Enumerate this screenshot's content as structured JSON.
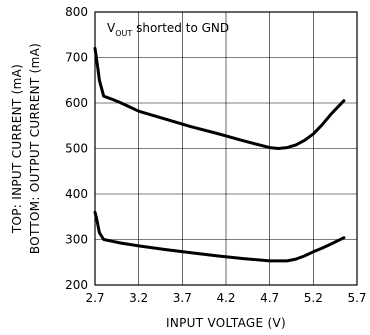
{
  "chart_data": {
    "type": "line",
    "annotation": {
      "main": "V",
      "subscript": "OUT",
      "rest": " shorted to GND"
    },
    "xlabel": "INPUT VOLTAGE (V)",
    "ylabel_line1": "TOP: INPUT CURRENT (mA)",
    "ylabel_line2": "BOTTOM: OUTPUT CURRENT (mA)",
    "xlim": [
      2.7,
      5.7
    ],
    "ylim": [
      200,
      800
    ],
    "xticks": [
      2.7,
      3.2,
      3.7,
      4.2,
      4.7,
      5.2,
      5.7
    ],
    "xtick_labels": [
      "2.7",
      "3.2",
      "3.7",
      "4.2",
      "4.7",
      "5.2",
      "5.7"
    ],
    "yticks": [
      200,
      300,
      400,
      500,
      600,
      700,
      800
    ],
    "ytick_labels": [
      "200",
      "300",
      "400",
      "500",
      "600",
      "700",
      "800"
    ],
    "grid": true,
    "series": [
      {
        "x": [
          2.7,
          2.72,
          2.75,
          2.8,
          2.9,
          3.0,
          3.2,
          3.5,
          3.8,
          4.1,
          4.4,
          4.7,
          4.8,
          4.9,
          5.0,
          5.1,
          5.2,
          5.3,
          5.4,
          5.55
        ],
        "values": [
          720,
          695,
          650,
          615,
          608,
          600,
          582,
          565,
          548,
          533,
          517,
          502,
          500,
          502,
          508,
          518,
          532,
          552,
          575,
          605
        ]
      },
      {
        "x": [
          2.7,
          2.72,
          2.75,
          2.8,
          2.9,
          3.0,
          3.2,
          3.5,
          3.8,
          4.1,
          4.4,
          4.7,
          4.9,
          5.0,
          5.1,
          5.2,
          5.3,
          5.4,
          5.55
        ],
        "values": [
          360,
          345,
          315,
          300,
          296,
          292,
          286,
          278,
          271,
          264,
          258,
          253,
          253,
          257,
          264,
          273,
          281,
          290,
          304
        ]
      }
    ]
  }
}
